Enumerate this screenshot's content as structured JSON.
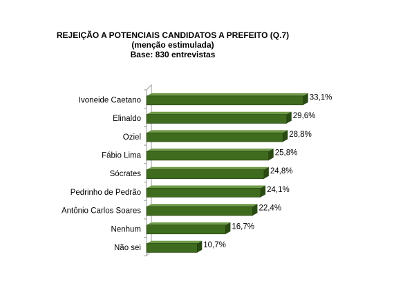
{
  "chart_data": {
    "type": "bar",
    "orientation": "horizontal",
    "title": "REJEIÇÃO A POTENCIAIS CANDIDATOS A PREFEITO  (Q.7)",
    "subtitle": "(menção estimulada)",
    "base_note": "Base: 830 entrevistas",
    "categories": [
      "Ivoneide Caetano",
      "Elinaldo",
      "Oziel",
      "Fábio Lima",
      "Sócrates",
      "Pedrinho de Pedrão",
      "Antônio Carlos Soares",
      "Nenhum",
      "Não sei"
    ],
    "values": [
      33.1,
      29.6,
      28.8,
      25.8,
      24.8,
      24.1,
      22.4,
      16.7,
      10.7
    ],
    "value_labels": [
      "33,1%",
      "29,6%",
      "28,8%",
      "25,8%",
      "24,8%",
      "24,1%",
      "22,4%",
      "16,7%",
      "10,7%"
    ],
    "xlim": [
      0,
      35
    ],
    "grid": false,
    "legend": "none",
    "bar_color": "#3f6b1f",
    "bar_color_dark": "#2a4a14"
  }
}
